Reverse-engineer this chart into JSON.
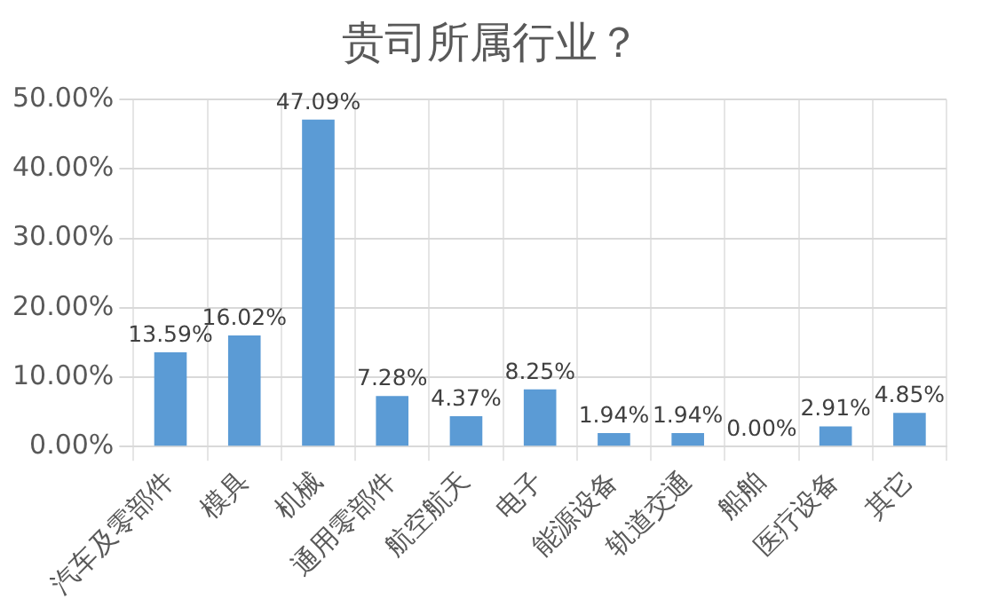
{
  "chart_data": {
    "type": "bar",
    "title": "贵司所属行业？",
    "categories": [
      "汽车及零部件",
      "模具",
      "机械",
      "通用零部件",
      "航空航天",
      "电子",
      "能源设备",
      "轨道交通",
      "船舶",
      "医疗设备",
      "其它"
    ],
    "values": [
      13.59,
      16.02,
      47.09,
      7.28,
      4.37,
      8.25,
      1.94,
      1.94,
      0,
      2.91,
      4.85
    ],
    "value_labels": [
      "13.59%",
      "16.02%",
      "47.09%",
      "7.28%",
      "4.37%",
      "8.25%",
      "1.94%",
      "1.94%",
      "0.00%",
      "2.91%",
      "4.85%"
    ],
    "color": "#5b9bd5",
    "ylim": [
      0,
      50
    ],
    "yticks": [
      {
        "value": 0,
        "label": "0.00%"
      },
      {
        "value": 10,
        "label": "10.00%"
      },
      {
        "value": 20,
        "label": "20.00%"
      },
      {
        "value": 30,
        "label": "30.00%"
      },
      {
        "value": 40,
        "label": "40.00%"
      },
      {
        "value": 50,
        "label": "50.00%"
      }
    ],
    "grid": true
  }
}
